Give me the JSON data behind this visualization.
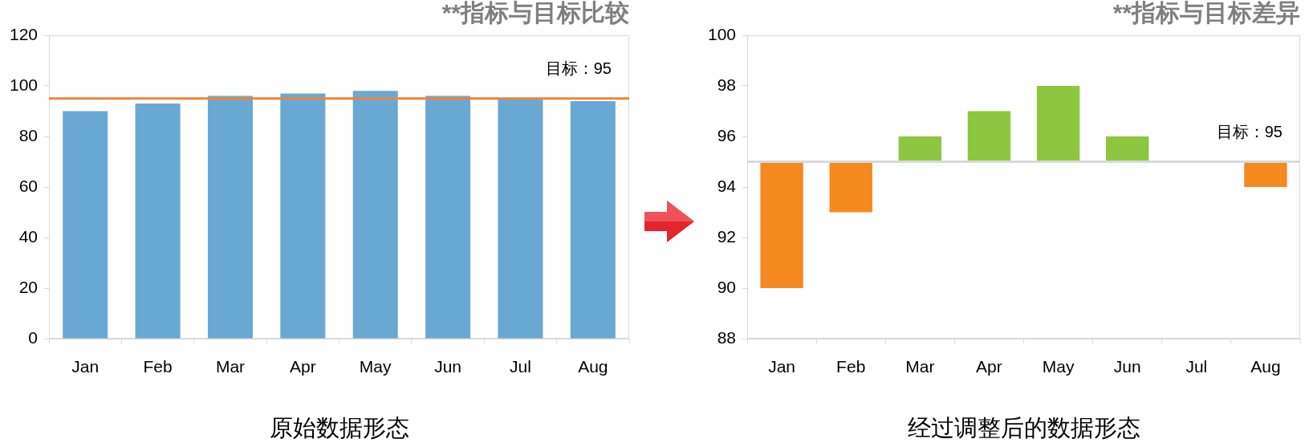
{
  "chart_data": [
    {
      "type": "bar",
      "title": "**指标与目标比较",
      "xlabel": "原始数据形态",
      "categories": [
        "Jan",
        "Feb",
        "Mar",
        "Apr",
        "May",
        "Jun",
        "Jul",
        "Aug"
      ],
      "values": [
        90,
        93,
        96,
        97,
        98,
        96,
        95,
        94
      ],
      "color": "#6aa8d4",
      "ylim": [
        0,
        120
      ],
      "yticks": [
        0,
        20,
        40,
        60,
        80,
        100,
        120
      ],
      "ref_lines": [
        {
          "axis": "y",
          "value": 95,
          "label": "目标：95",
          "color": "#ee8433"
        }
      ]
    },
    {
      "type": "bar",
      "title": "**指标与目标差异",
      "xlabel": "经过调整后的数据形态",
      "categories": [
        "Jan",
        "Feb",
        "Mar",
        "Apr",
        "May",
        "Jun",
        "Jul",
        "Aug"
      ],
      "base": [
        95,
        95,
        95,
        95,
        95,
        95,
        null,
        95
      ],
      "values": [
        -5,
        -2,
        1,
        2,
        3,
        1,
        null,
        -1
      ],
      "colors": [
        "#f58a21",
        "#f58a21",
        "#8dc63f",
        "#8dc63f",
        "#8dc63f",
        "#8dc63f",
        "#8dc63f",
        "#f58a21"
      ],
      "ylim": [
        88,
        100
      ],
      "yticks": [
        88,
        90,
        92,
        94,
        96,
        98,
        100
      ],
      "ref_lines": [
        {
          "axis": "y",
          "value": 95,
          "label": "目标：95",
          "color": "#d9d9d9"
        }
      ]
    }
  ]
}
